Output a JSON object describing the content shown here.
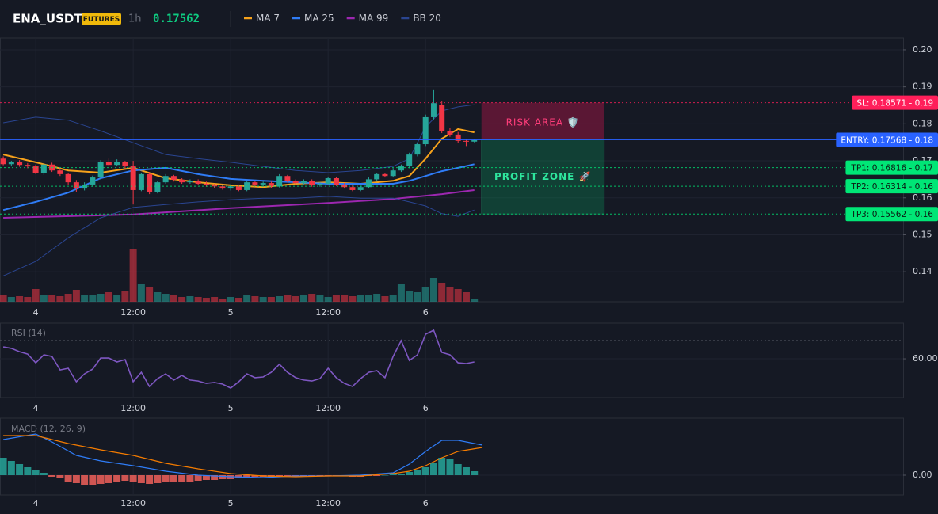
{
  "header": {
    "symbol": "ENA_USDT",
    "badge": "FUTURES",
    "interval": "1h",
    "price": 0.17562
  },
  "chart_data": [
    {
      "type": "candlestick",
      "x": [
        -4,
        -3,
        -2,
        -1,
        0,
        1,
        2,
        3,
        4,
        5,
        6,
        7,
        8,
        9,
        10,
        11,
        12,
        13,
        14,
        15,
        16,
        17,
        18,
        19,
        20,
        21,
        22,
        23,
        24,
        25,
        26,
        27,
        28,
        29,
        30,
        31,
        32,
        33,
        34,
        35,
        36,
        37,
        38,
        39,
        40,
        41,
        42,
        43,
        44,
        45,
        46,
        47,
        48,
        49,
        50,
        51,
        52,
        53,
        54
      ],
      "open": [
        0.1706,
        0.1691,
        0.1696,
        0.1689,
        0.1685,
        0.1668,
        0.169,
        0.1674,
        0.1664,
        0.1642,
        0.1625,
        0.1636,
        0.1655,
        0.1696,
        0.1689,
        0.1696,
        0.1685,
        0.1621,
        0.1664,
        0.1616,
        0.1642,
        0.1659,
        0.1649,
        0.1642,
        0.1646,
        0.1638,
        0.1634,
        0.1631,
        0.1625,
        0.1631,
        0.1621,
        0.1642,
        0.1636,
        0.164,
        0.1631,
        0.1659,
        0.1646,
        0.164,
        0.1646,
        0.1634,
        0.1638,
        0.1653,
        0.1636,
        0.1629,
        0.1621,
        0.1629,
        0.165,
        0.1664,
        0.1659,
        0.1674,
        0.1685,
        0.1717,
        0.1745,
        0.1818,
        0.1852,
        0.1781,
        0.1771,
        0.1754,
        0.1752
      ],
      "high": [
        0.1712,
        0.17,
        0.1702,
        0.1694,
        0.169,
        0.1694,
        0.1695,
        0.168,
        0.1668,
        0.1648,
        0.1642,
        0.166,
        0.1702,
        0.1706,
        0.1704,
        0.17,
        0.17,
        0.1668,
        0.167,
        0.1646,
        0.1664,
        0.1662,
        0.1653,
        0.165,
        0.165,
        0.1644,
        0.1638,
        0.1636,
        0.1634,
        0.1636,
        0.1646,
        0.1646,
        0.1644,
        0.1644,
        0.1664,
        0.1662,
        0.165,
        0.165,
        0.165,
        0.1642,
        0.1657,
        0.1657,
        0.164,
        0.1634,
        0.1633,
        0.1655,
        0.1668,
        0.1668,
        0.168,
        0.169,
        0.1722,
        0.175,
        0.1825,
        0.1891,
        0.1862,
        0.179,
        0.1778,
        0.176,
        0.176
      ],
      "low": [
        0.1688,
        0.1685,
        0.1684,
        0.168,
        0.1664,
        0.1662,
        0.167,
        0.1659,
        0.1636,
        0.1616,
        0.162,
        0.163,
        0.165,
        0.1684,
        0.1685,
        0.168,
        0.1582,
        0.1618,
        0.161,
        0.1612,
        0.1638,
        0.1644,
        0.1638,
        0.1638,
        0.1634,
        0.163,
        0.1627,
        0.1622,
        0.162,
        0.1618,
        0.1618,
        0.1632,
        0.163,
        0.1627,
        0.1628,
        0.1642,
        0.1636,
        0.1636,
        0.163,
        0.163,
        0.1634,
        0.1632,
        0.1625,
        0.1618,
        0.1618,
        0.1625,
        0.1646,
        0.1655,
        0.1655,
        0.167,
        0.168,
        0.1712,
        0.174,
        0.1812,
        0.1775,
        0.1765,
        0.1748,
        0.174,
        0.175
      ],
      "close": [
        0.1691,
        0.1696,
        0.1689,
        0.1685,
        0.1668,
        0.169,
        0.1674,
        0.1664,
        0.1642,
        0.1625,
        0.1636,
        0.1655,
        0.1696,
        0.1689,
        0.1696,
        0.1685,
        0.1621,
        0.1664,
        0.1616,
        0.1642,
        0.1659,
        0.1649,
        0.1642,
        0.1646,
        0.1638,
        0.1634,
        0.1631,
        0.1625,
        0.1631,
        0.1621,
        0.1642,
        0.1636,
        0.164,
        0.1631,
        0.1659,
        0.1646,
        0.164,
        0.1646,
        0.1634,
        0.1638,
        0.1653,
        0.1636,
        0.1629,
        0.1621,
        0.1629,
        0.165,
        0.1664,
        0.1659,
        0.1674,
        0.1685,
        0.1717,
        0.1745,
        0.1818,
        0.1856,
        0.1781,
        0.1771,
        0.1754,
        0.1752,
        0.1756
      ],
      "volume": [
        8,
        6,
        7,
        6,
        16,
        8,
        9,
        7,
        10,
        15,
        9,
        8,
        10,
        12,
        9,
        14,
        66,
        22,
        18,
        12,
        10,
        8,
        6,
        7,
        6,
        5,
        6,
        4,
        6,
        5,
        8,
        7,
        6,
        6,
        7,
        8,
        7,
        9,
        10,
        8,
        6,
        9,
        8,
        7,
        9,
        8,
        10,
        7,
        9,
        22,
        14,
        12,
        18,
        30,
        24,
        18,
        16,
        12,
        3
      ],
      "up_color": "#26a69a",
      "down_color": "#f23645",
      "xlim": [
        -4.4,
        106.8
      ],
      "xticks": [
        {
          "value": 0,
          "label": "4"
        },
        {
          "value": 12,
          "label": "12:00"
        },
        {
          "value": 24,
          "label": "5"
        },
        {
          "value": 36,
          "label": "12:00"
        },
        {
          "value": 48,
          "label": "6"
        }
      ],
      "ylim": [
        0.1319,
        0.2032
      ],
      "yticks": [
        {
          "value": 0.2,
          "label": "0.20"
        },
        {
          "value": 0.19,
          "label": "0.19"
        },
        {
          "value": 0.18,
          "label": "0.18"
        },
        {
          "value": 0.17,
          "label": "0.17"
        },
        {
          "value": 0.16,
          "label": "0.16"
        },
        {
          "value": 0.15,
          "label": "0.15"
        },
        {
          "value": 0.14,
          "label": "0.14"
        }
      ],
      "grid": true,
      "series": [
        {
          "name": "MA 7",
          "color": "#f7a21b",
          "x": [
            -4,
            0,
            4,
            8,
            12,
            16,
            20,
            24,
            28,
            32,
            36,
            40,
            44,
            46,
            48,
            50,
            52,
            54
          ],
          "values": [
            0.1717,
            0.1696,
            0.1674,
            0.1668,
            0.1681,
            0.1653,
            0.1642,
            0.1634,
            0.1629,
            0.1638,
            0.1642,
            0.1638,
            0.1646,
            0.1659,
            0.1706,
            0.176,
            0.1786,
            0.1777
          ]
        },
        {
          "name": "MA 25",
          "color": "#2f7cf6",
          "x": [
            -4,
            0,
            4,
            8,
            12,
            16,
            20,
            24,
            28,
            32,
            36,
            40,
            44,
            46,
            48,
            50,
            52,
            54
          ],
          "values": [
            0.1567,
            0.1589,
            0.1614,
            0.1653,
            0.1674,
            0.1681,
            0.1664,
            0.1651,
            0.1646,
            0.1642,
            0.1638,
            0.1638,
            0.1638,
            0.1646,
            0.1659,
            0.1672,
            0.1681,
            0.1691
          ]
        },
        {
          "name": "MA 99",
          "color": "#9c27b0",
          "x": [
            -4,
            12,
            24,
            36,
            44,
            50,
            54
          ],
          "values": [
            0.1546,
            0.1555,
            0.1572,
            0.1586,
            0.1597,
            0.161,
            0.1621
          ]
        },
        {
          "name": "BB 20",
          "color": "#2a4591",
          "x": [
            -4,
            0,
            4,
            8,
            12,
            16,
            20,
            24,
            28,
            32,
            36,
            40,
            44,
            46,
            48,
            50,
            52,
            54
          ],
          "values": [
            0.1803,
            0.1818,
            0.181,
            0.1781,
            0.1749,
            0.1717,
            0.1706,
            0.1696,
            0.1685,
            0.1674,
            0.1668,
            0.1674,
            0.1685,
            0.1706,
            0.1792,
            0.1835,
            0.1846,
            0.1852
          ],
          "lower": [
            0.1389,
            0.1428,
            0.1492,
            0.1546,
            0.1574,
            0.1582,
            0.1589,
            0.1595,
            0.1599,
            0.1599,
            0.1604,
            0.1599,
            0.1599,
            0.1589,
            0.1578,
            0.1557,
            0.155,
            0.1567
          ]
        }
      ],
      "levels": [
        {
          "value": 0.18571,
          "label": "SL: 0.18571 - 0.19",
          "color": "#ff1f5a"
        },
        {
          "value": 0.17568,
          "label": "ENTRY: 0.17568 - 0.18",
          "color": "#2962ff"
        },
        {
          "value": 0.16816,
          "label": "TP1: 0.16816 - 0.17",
          "color": "#00e676"
        },
        {
          "value": 0.16314,
          "label": "TP2: 0.16314 - 0.16",
          "color": "#00e676"
        },
        {
          "value": 0.15562,
          "label": "TP3: 0.15562 - 0.16",
          "color": "#00e676"
        }
      ],
      "risk_label": "RISK AREA 🛡️",
      "profit_label": "PROFIT ZONE 🚀"
    },
    {
      "type": "line",
      "title": "RSI (14)",
      "series": [
        {
          "color": "#7e57c2",
          "values": [
            66.5,
            65.7,
            63.9,
            62.6,
            57.8,
            62.2,
            61.3,
            53.9,
            54.8,
            47.4,
            51.7,
            54.3,
            60.4,
            60.4,
            58.3,
            59.6,
            47.4,
            52.6,
            44.8,
            49.1,
            51.7,
            48.3,
            50.9,
            48.3,
            47.8,
            46.5,
            47.0,
            46.1,
            43.9,
            47.4,
            51.7,
            49.6,
            50.0,
            52.6,
            57.0,
            52.6,
            49.6,
            48.3,
            47.8,
            49.1,
            54.8,
            49.6,
            46.5,
            44.8,
            49.1,
            52.6,
            53.5,
            49.6,
            61.3,
            70.0,
            59.1,
            62.2,
            73.5,
            75.7,
            63.5,
            62.2,
            57.8,
            57.4,
            58.3
          ]
        }
      ],
      "level": 70,
      "xlim": [
        -4.4,
        106.8
      ],
      "xticks": [
        {
          "value": 0,
          "label": "4"
        },
        {
          "value": 12,
          "label": "12:00"
        },
        {
          "value": 24,
          "label": "5"
        },
        {
          "value": 36,
          "label": "12:00"
        },
        {
          "value": 48,
          "label": "6"
        }
      ],
      "ylim": [
        38.7,
        79.6
      ],
      "yticks": [
        {
          "value": 60,
          "label": "60.00"
        }
      ]
    },
    {
      "type": "macd",
      "title": "MACD (12, 26, 9)",
      "histogram": [
        0.0011,
        0.0009,
        0.0007,
        0.0005,
        0.00035,
        0.00015,
        -0.0001,
        -0.0002,
        -0.0004,
        -0.0005,
        -0.0006,
        -0.00065,
        -0.00055,
        -0.0005,
        -0.0004,
        -0.00035,
        -0.00045,
        -0.0005,
        -0.00055,
        -0.0005,
        -0.00045,
        -0.00045,
        -0.0004,
        -0.0004,
        -0.00035,
        -0.0003,
        -0.0003,
        -0.00025,
        -0.00025,
        -0.0002,
        -0.00015,
        -0.0001,
        -0.0001,
        -0.0001,
        -5e-05,
        -5e-05,
        -5e-05,
        -5e-05,
        -5e-05,
        -5e-05,
        -5e-05,
        -5e-05,
        -5e-05,
        -0.0001,
        -0.0001,
        -5e-05,
        -5e-05,
        0,
        5e-05,
        0.0001,
        0.0002,
        0.00035,
        0.0005,
        0.0008,
        0.0011,
        0.001,
        0.0007,
        0.0005,
        0.00025
      ],
      "pos_color": "#26a69a",
      "neg_color": "#f0605a",
      "series": [
        {
          "color": "#2f7cf6",
          "x": [
            -4,
            0,
            2,
            5,
            8,
            12,
            16,
            20,
            24,
            28,
            32,
            36,
            40,
            44,
            46,
            48,
            50,
            52,
            55
          ],
          "values": [
            0.00225,
            0.0026,
            0.0021,
            0.00125,
            0.0009,
            0.0006,
            0.00025,
            0,
            -0.0001,
            -0.00015,
            -5e-05,
            -5e-05,
            0,
            0.00015,
            0.0007,
            0.0015,
            0.0022,
            0.0022,
            0.0019
          ]
        },
        {
          "color": "#f57c00",
          "x": [
            -4,
            0,
            4,
            8,
            12,
            16,
            20,
            24,
            28,
            32,
            36,
            40,
            44,
            46,
            48,
            50,
            52,
            55
          ],
          "values": [
            0.0025,
            0.0025,
            0.002,
            0.0016,
            0.00125,
            0.00075,
            0.0004,
            0.0001,
            -5e-05,
            -0.0001,
            -5e-05,
            -5e-05,
            0.0001,
            0.00025,
            0.0006,
            0.0011,
            0.0015,
            0.00175
          ]
        }
      ],
      "xlim": [
        -4.4,
        106.8
      ],
      "xticks": [
        {
          "value": 0,
          "label": "4"
        },
        {
          "value": 12,
          "label": "12:00"
        },
        {
          "value": 24,
          "label": "5"
        },
        {
          "value": 36,
          "label": "12:00"
        },
        {
          "value": 48,
          "label": "6"
        }
      ],
      "ylim": [
        -0.00125,
        0.0036
      ],
      "yticks": [
        {
          "value": 0,
          "label": "0.00"
        }
      ]
    }
  ]
}
